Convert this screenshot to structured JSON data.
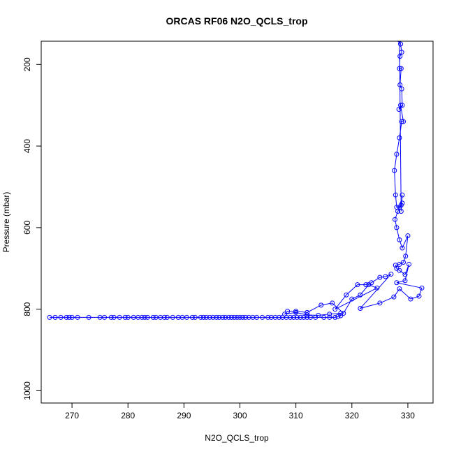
{
  "chart_data": {
    "type": "scatter",
    "title": "ORCAS RF06 N2O_QCLS_trop",
    "xlabel": "N2O_QCLS_trop",
    "ylabel": "Pressure (mbar)",
    "xlim": [
      264.5,
      334.5
    ],
    "ylim": [
      1030,
      143
    ],
    "y_reversed": true,
    "grid": false,
    "legend": "none",
    "x_ticks": [
      270,
      280,
      290,
      300,
      310,
      320,
      330
    ],
    "y_ticks": [
      200,
      400,
      600,
      800,
      1000
    ],
    "series": [
      {
        "color": "#0000ff",
        "marker": "open-circle",
        "connect": true,
        "x": [
          266.0,
          267.0,
          268.0,
          269.0,
          269.5,
          270.0,
          271.0,
          273.0,
          275.0,
          275.8,
          277.0,
          277.5,
          278.5,
          279.5,
          280.0,
          281.0,
          281.8,
          282.5,
          283.0,
          283.5,
          284.5,
          285.0,
          285.8,
          286.5,
          287.0,
          288.0,
          289.0,
          289.7,
          290.5,
          291.5,
          292.0,
          293.0,
          293.5,
          294.0,
          294.6,
          295.2,
          295.8,
          296.3,
          296.9,
          297.4,
          298.0,
          298.5,
          299.0,
          299.5,
          300.0,
          300.5,
          301.0,
          301.6,
          302.3,
          303.0,
          304.0,
          305.0,
          305.6,
          306.3,
          307.0,
          307.6,
          308.3,
          309.0,
          309.6,
          310.2,
          310.8,
          311.4,
          312.0,
          312.6,
          313.5,
          315.0,
          316.0,
          317.0,
          317.5,
          318.0,
          318.0,
          316.0,
          314.0,
          312.0,
          310.0,
          308.0,
          308.5,
          310.0,
          312.0,
          314.5,
          316.5,
          318.5,
          320.0,
          321.5,
          323.0,
          324.5,
          317.0,
          319.0,
          321.0,
          322.5,
          323.5,
          325.0,
          326.0,
          327.0,
          321.5,
          325.0,
          327.5,
          328.5,
          330.5,
          332.0,
          332.5,
          328.0,
          329.5,
          330.2,
          329.5,
          328.5,
          328.0,
          327.8,
          328.5,
          329.2,
          329.6,
          330.0,
          329.0,
          328.5,
          328.0,
          327.7,
          328.2,
          328.8,
          329.0,
          328.5,
          328.0,
          327.8,
          327.6,
          328.0,
          328.5,
          328.9,
          329.2,
          328.7,
          328.4,
          329.0,
          328.9,
          328.6,
          328.8,
          328.5,
          328.6,
          328.9,
          328.7,
          328.5,
          328.8,
          329.0
        ],
        "y": [
          820,
          820,
          820,
          820,
          820,
          820,
          820,
          820,
          820,
          820,
          820,
          820,
          820,
          820,
          820,
          820,
          820,
          820,
          820,
          820,
          820,
          820,
          820,
          820,
          820,
          820,
          820,
          820,
          820,
          820,
          820,
          820,
          820,
          820,
          820,
          820,
          820,
          820,
          820,
          820,
          820,
          820,
          820,
          820,
          820,
          820,
          820,
          820,
          820,
          820,
          820,
          820,
          820,
          820,
          820,
          820,
          820,
          820,
          820,
          820,
          820,
          820,
          820,
          820,
          820,
          820,
          820,
          820,
          818,
          816,
          810,
          812,
          815,
          814,
          808,
          812,
          805,
          805,
          808,
          790,
          785,
          810,
          775,
          765,
          740,
          748,
          800,
          765,
          740,
          740,
          735,
          722,
          720,
          714,
          798,
          785,
          770,
          750,
          775,
          768,
          748,
          735,
          730,
          690,
          715,
          705,
          700,
          692,
          690,
          685,
          670,
          620,
          650,
          630,
          600,
          580,
          560,
          545,
          540,
          550,
          550,
          520,
          460,
          420,
          380,
          340,
          340,
          300,
          310,
          300,
          260,
          250,
          210,
          210,
          180,
          170,
          150,
          140,
          560,
          520
        ]
      }
    ]
  }
}
